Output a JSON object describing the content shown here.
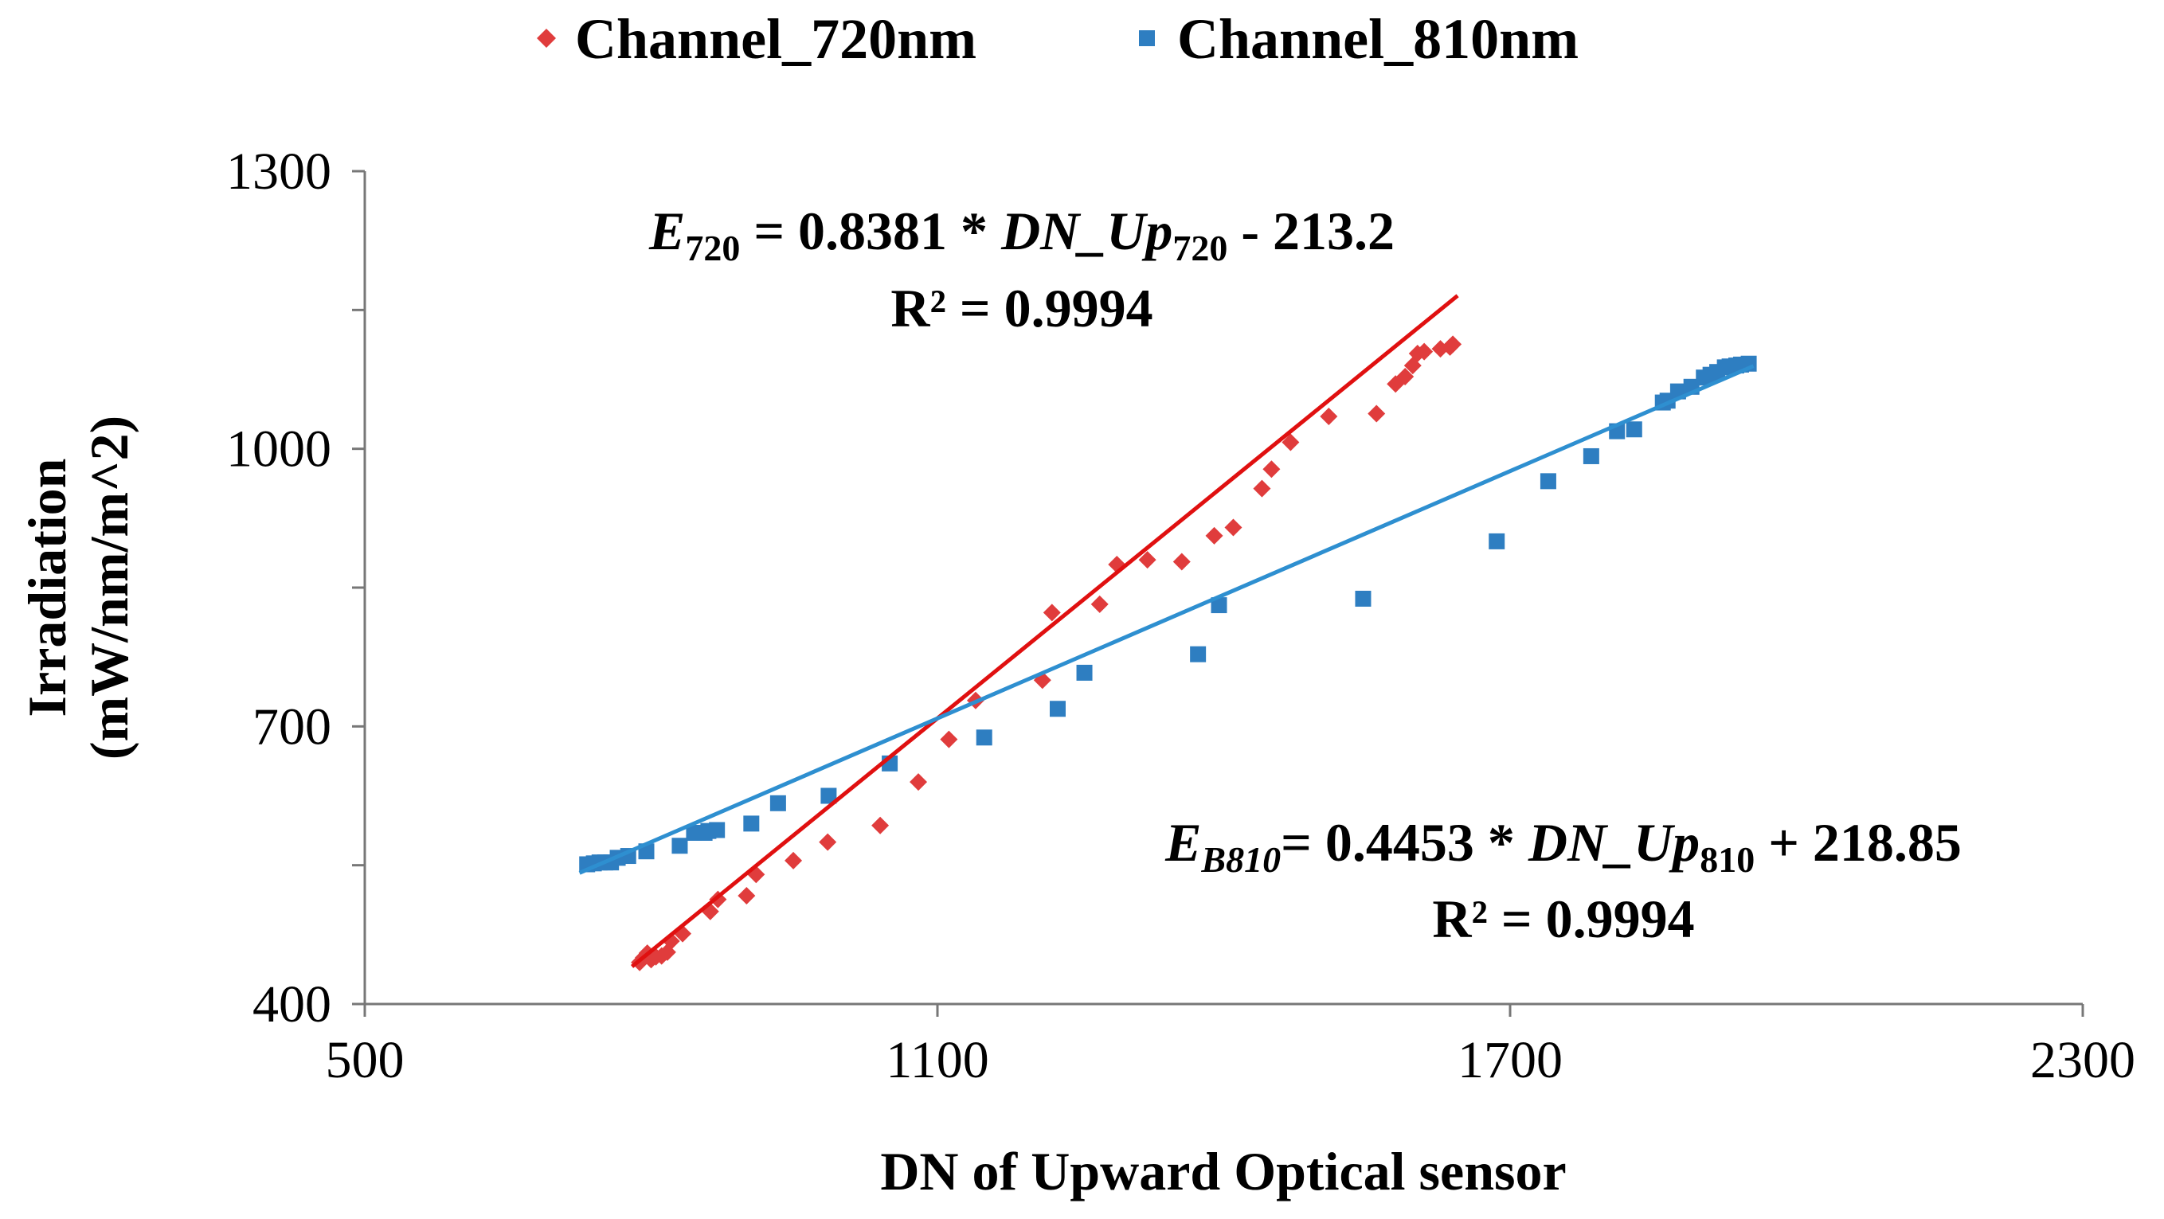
{
  "chart_data": {
    "type": "scatter",
    "title": "",
    "xlabel": "DN of Upward Optical sensor",
    "ylabel_line1": "Irradiation",
    "ylabel_line2": "(mW/nm/m^2)",
    "xlim": [
      500,
      2300
    ],
    "ylim": [
      400,
      1300
    ],
    "x_ticks": [
      500,
      1100,
      1700,
      2300
    ],
    "x_tick_labels": [
      "500",
      "1100",
      "1700",
      "2300"
    ],
    "y_major_ticks": [
      400,
      700,
      1000,
      1300
    ],
    "y_tick_labels": [
      "400",
      "700",
      "1000",
      "1300"
    ],
    "y_minor_ticks": [
      550,
      850,
      1150
    ],
    "legend_position": "top-center",
    "series": [
      {
        "name": "Channel_720nm",
        "marker": "diamond",
        "color": "#e03c3c",
        "line_color": "#e01010",
        "x": [
          788,
          792,
          796,
          800,
          805,
          811,
          817,
          821,
          833,
          862,
          870,
          900,
          910,
          949,
          985,
          1040,
          1080,
          1112,
          1140,
          1210,
          1220,
          1270,
          1288,
          1320,
          1356,
          1390,
          1410,
          1440,
          1450,
          1470,
          1510,
          1560,
          1580,
          1590,
          1598,
          1603,
          1610,
          1627,
          1637,
          1640
        ],
        "y": [
          445,
          450,
          455,
          448,
          451,
          452,
          456,
          468,
          476,
          500,
          513,
          517,
          540,
          555,
          575,
          593,
          640,
          686,
          728,
          750,
          823,
          832,
          875,
          880,
          878,
          906,
          915,
          957,
          978,
          1007,
          1035,
          1038,
          1070,
          1078,
          1090,
          1103,
          1105,
          1108,
          1110,
          1113
        ],
        "trendline": {
          "slope": 0.8381,
          "intercept": -213.2,
          "x_start": 780,
          "x_end": 1645
        }
      },
      {
        "name": "Channel_810nm",
        "marker": "square",
        "color": "#2e7ec1",
        "line_color": "#2e8fd0",
        "x": [
          733,
          740,
          746,
          752,
          758,
          765,
          776,
          795,
          830,
          845,
          856,
          860,
          869,
          905,
          933,
          986,
          1050,
          1149,
          1226,
          1254,
          1373,
          1395,
          1546,
          1686,
          1740,
          1785,
          1812,
          1830,
          1860,
          1865,
          1876,
          1890,
          1903,
          1910,
          1917,
          1925,
          1930,
          1937,
          1942,
          1950
        ],
        "y": [
          551,
          552,
          553,
          553,
          553,
          558,
          560,
          565,
          571,
          585,
          585,
          587,
          588,
          595,
          617,
          625,
          660,
          688,
          719,
          758,
          778,
          831,
          838,
          900,
          965,
          992,
          1019,
          1021,
          1050,
          1052,
          1062,
          1067,
          1077,
          1080,
          1083,
          1088,
          1089,
          1090,
          1091,
          1092
        ],
        "trendline": {
          "slope": 0.4453,
          "intercept": 218.85,
          "x_start": 725,
          "x_end": 1955
        }
      }
    ],
    "annotations": [
      {
        "series": "Channel_720nm",
        "eq_lhs": "E",
        "eq_lhs_sub": "720",
        "eq_mid": " = 0.8381 * ",
        "eq_var": "DN_Up",
        "eq_var_sub": "720",
        "eq_rhs": " - 213.2",
        "r2": "R² = 0.9994"
      },
      {
        "series": "Channel_810nm",
        "eq_lhs": "E",
        "eq_lhs_sub": "B810",
        "eq_mid": "= 0.4453 * ",
        "eq_var": "DN_Up",
        "eq_var_sub": "810",
        "eq_rhs": " + 218.85",
        "r2": "R² = 0.9994"
      }
    ]
  }
}
